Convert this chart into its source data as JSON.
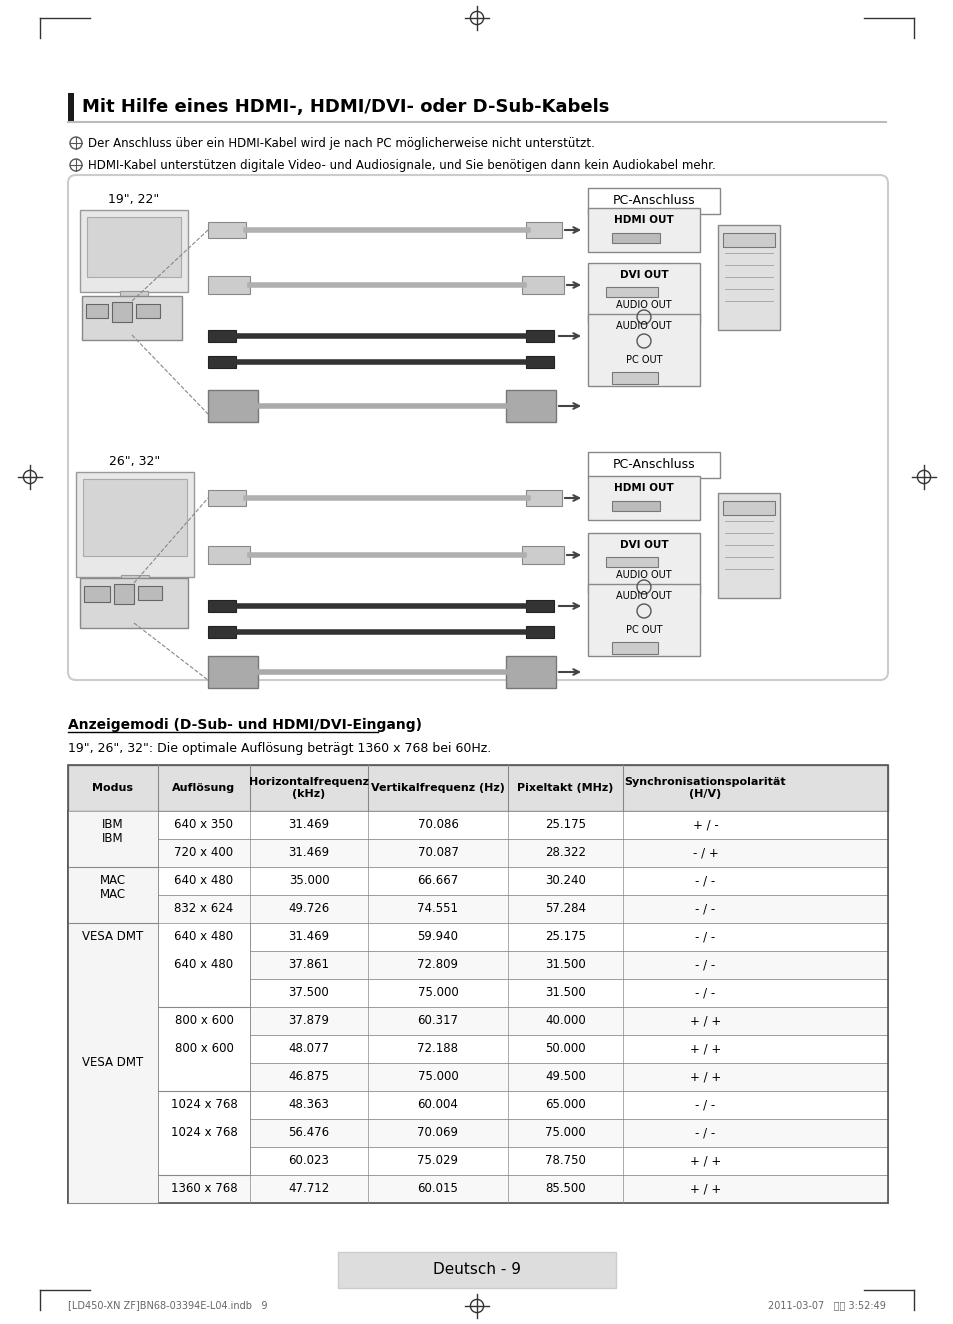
{
  "page_bg": "#ffffff",
  "border_color": "#cccccc",
  "title": "Mit Hilfe eines HDMI-, HDMI/DVI- oder D-Sub-Kabels",
  "note1": "Der Anschluss über ein HDMI-Kabel wird je nach PC möglicherweise nicht unterstützt.",
  "note2": "HDMI-Kabel unterstützen digitale Video- und Audiosignale, und Sie benötigen dann kein Audiokabel mehr.",
  "section_title": "Anzeigemodi (D-Sub- und HDMI/DVI-Eingang)",
  "resolution_note": "19\", 26\", 32\": Die optimale Auflösung beträgt 1360 x 768 bei 60Hz.",
  "table_header": [
    "Modus",
    "Auflösung",
    "Horizontalfrequenz\n(kHz)",
    "Vertikalfrequenz (Hz)",
    "Pixeltakt (MHz)",
    "Synchronisationspolarität\n(H/V)"
  ],
  "table_data": [
    [
      "IBM",
      "640 x 350",
      "31.469",
      "70.086",
      "25.175",
      "+ / -"
    ],
    [
      "",
      "720 x 400",
      "31.469",
      "70.087",
      "28.322",
      "- / +"
    ],
    [
      "MAC",
      "640 x 480",
      "35.000",
      "66.667",
      "30.240",
      "- / -"
    ],
    [
      "",
      "832 x 624",
      "49.726",
      "74.551",
      "57.284",
      "- / -"
    ],
    [
      "VESA DMT",
      "640 x 480",
      "31.469",
      "59.940",
      "25.175",
      "- / -"
    ],
    [
      "",
      "",
      "37.861",
      "72.809",
      "31.500",
      "- / -"
    ],
    [
      "",
      "",
      "37.500",
      "75.000",
      "31.500",
      "- / -"
    ],
    [
      "",
      "800 x 600",
      "37.879",
      "60.317",
      "40.000",
      "+ / +"
    ],
    [
      "",
      "",
      "48.077",
      "72.188",
      "50.000",
      "+ / +"
    ],
    [
      "",
      "",
      "46.875",
      "75.000",
      "49.500",
      "+ / +"
    ],
    [
      "",
      "1024 x 768",
      "48.363",
      "60.004",
      "65.000",
      "- / -"
    ],
    [
      "",
      "",
      "56.476",
      "70.069",
      "75.000",
      "- / -"
    ],
    [
      "",
      "",
      "60.023",
      "75.029",
      "78.750",
      "+ / +"
    ],
    [
      "",
      "1360 x 768",
      "47.712",
      "60.015",
      "85.500",
      "+ / +"
    ]
  ],
  "footer_text": "Deutsch - 9",
  "bottom_note1": "[LD450-XN ZF]BN68-03394E-L04.indb   9",
  "bottom_note2": "2011-03-07   오전 3:52:49",
  "pc_anschluss_label": "PC-Anschluss",
  "label_19_22": "19\", 22\"",
  "label_26_32": "26\", 32\""
}
